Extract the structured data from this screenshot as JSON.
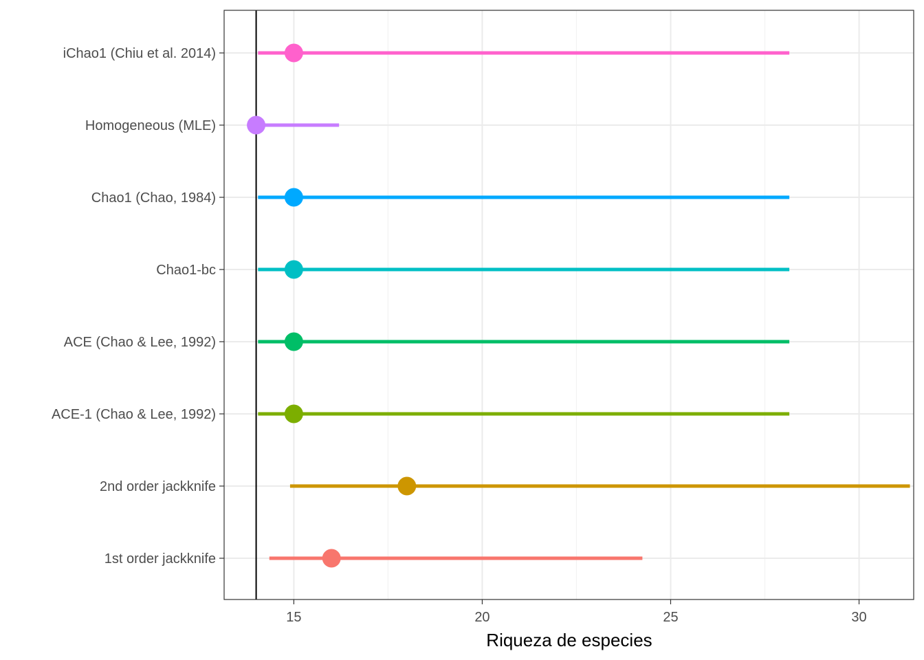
{
  "chart_data": {
    "type": "pointrange",
    "xlabel": "Riqueza de especies",
    "ylabel": "",
    "xlim": [
      13.15,
      31.45
    ],
    "xticks": [
      15,
      20,
      25,
      30
    ],
    "grid": true,
    "legend": "none",
    "reference_line": {
      "x": 14
    },
    "categories": [
      "1st order jackknife",
      "2nd order jackknife",
      "ACE-1 (Chao & Lee, 1992)",
      "ACE (Chao & Lee, 1992)",
      "Chao1-bc",
      "Chao1 (Chao, 1984)",
      "Homogeneous (MLE)",
      "iChao1 (Chiu et al. 2014)"
    ],
    "series": [
      {
        "estimate": 16.0,
        "lower": 14.35,
        "upper": 24.25,
        "color": "#F8766D"
      },
      {
        "estimate": 18.0,
        "lower": 14.9,
        "upper": 31.35,
        "color": "#CD9600"
      },
      {
        "estimate": 15.0,
        "lower": 14.05,
        "upper": 28.15,
        "color": "#7CAE00"
      },
      {
        "estimate": 15.0,
        "lower": 14.05,
        "upper": 28.15,
        "color": "#00BE67"
      },
      {
        "estimate": 15.0,
        "lower": 14.05,
        "upper": 28.15,
        "color": "#00BFC4"
      },
      {
        "estimate": 15.0,
        "lower": 14.05,
        "upper": 28.15,
        "color": "#00A9FF"
      },
      {
        "estimate": 14.0,
        "lower": 14.0,
        "upper": 16.2,
        "color": "#C77CFF"
      },
      {
        "estimate": 15.0,
        "lower": 14.05,
        "upper": 28.15,
        "color": "#FF61CC"
      }
    ]
  }
}
